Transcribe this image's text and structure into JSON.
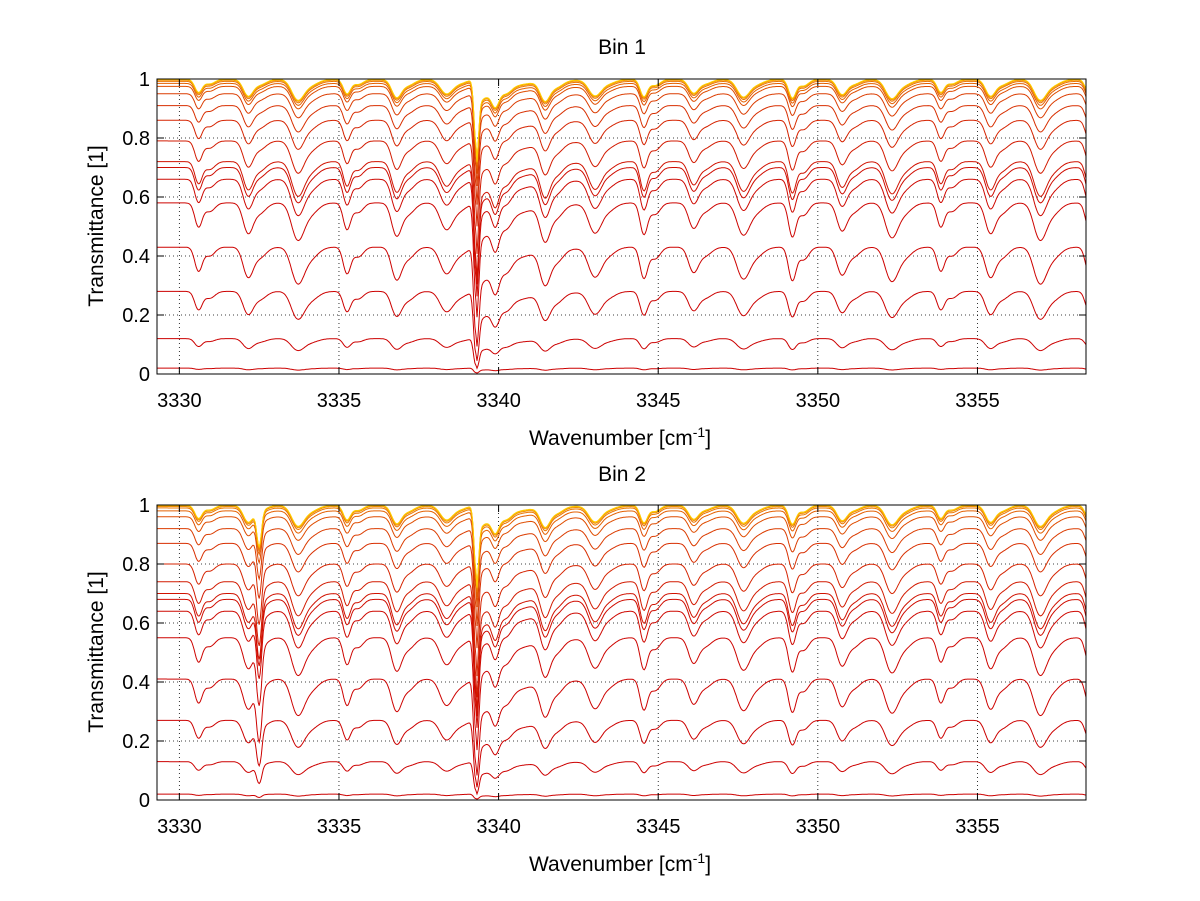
{
  "figure": {
    "background": "#ffffff"
  },
  "chart_data": [
    {
      "type": "line",
      "title": "Bin 1",
      "xlabel": "Wavenumber [cm",
      "xlabel_sup": "-1",
      "xlabel_end": "]",
      "ylabel": "Transmittance [1]",
      "xlim": [
        3329.3,
        3358.4
      ],
      "ylim": [
        0,
        1
      ],
      "xticks": [
        3330,
        3335,
        3340,
        3345,
        3350,
        3355
      ],
      "xtick_labels": [
        "3330",
        "3335",
        "3340",
        "3345",
        "3350",
        "3355"
      ],
      "yticks": [
        0,
        0.2,
        0.4,
        0.6,
        0.8,
        1
      ],
      "ytick_labels": [
        "0",
        "0.2",
        "0.4",
        "0.6",
        "0.8",
        "1"
      ],
      "grid": "dotted",
      "colormap": "autumn (dark red for low transmittance to orange-yellow near 1)",
      "color_low": "#cc0000",
      "color_high": "#ffcc00",
      "strong_line_center": 3339.3,
      "periodic_lines_start": 3330.6,
      "periodic_lines_spacing": 1.55,
      "series_baseline": [
        0.0,
        0.02,
        0.12,
        0.28,
        0.43,
        0.58,
        0.66,
        0.7,
        0.72,
        0.79,
        0.86,
        0.91,
        0.95,
        0.975,
        0.985,
        0.992,
        0.996,
        0.998,
        0.999
      ]
    },
    {
      "type": "line",
      "title": "Bin 2",
      "xlabel": "Wavenumber [cm",
      "xlabel_sup": "-1",
      "xlabel_end": "]",
      "ylabel": "Transmittance [1]",
      "xlim": [
        3329.3,
        3358.4
      ],
      "ylim": [
        0,
        1
      ],
      "xticks": [
        3330,
        3335,
        3340,
        3345,
        3350,
        3355
      ],
      "xtick_labels": [
        "3330",
        "3335",
        "3340",
        "3345",
        "3350",
        "3355"
      ],
      "yticks": [
        0,
        0.2,
        0.4,
        0.6,
        0.8,
        1
      ],
      "ytick_labels": [
        "0",
        "0.2",
        "0.4",
        "0.6",
        "0.8",
        "1"
      ],
      "grid": "dotted",
      "colormap": "autumn (dark red for low transmittance to orange-yellow near 1)",
      "color_low": "#cc0000",
      "color_high": "#ffcc00",
      "strong_line_center": 3339.3,
      "periodic_lines_start": 3330.6,
      "periodic_lines_spacing": 1.55,
      "extra_line_center": 3332.5,
      "series_baseline": [
        0.0,
        0.02,
        0.13,
        0.27,
        0.41,
        0.55,
        0.64,
        0.68,
        0.7,
        0.74,
        0.8,
        0.87,
        0.92,
        0.96,
        0.98,
        0.99,
        0.995,
        0.998,
        0.999
      ]
    }
  ]
}
